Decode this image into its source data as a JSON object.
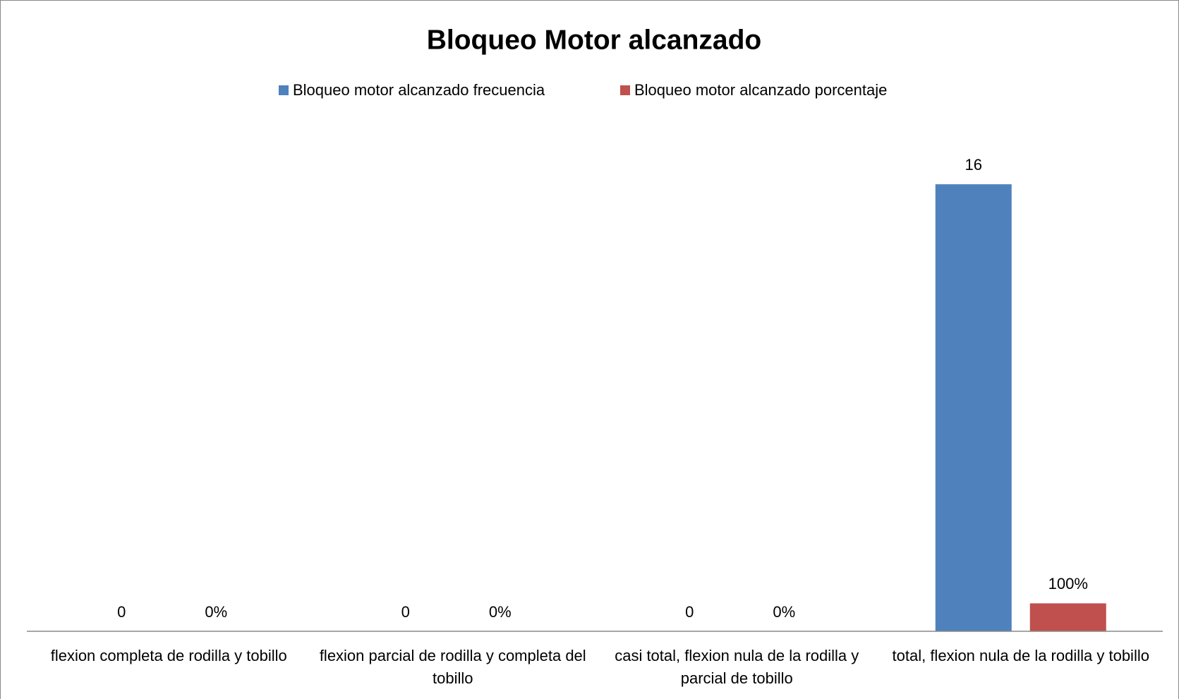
{
  "chart_data": {
    "type": "bar",
    "title": "Bloqueo Motor alcanzado",
    "categories": [
      "flexion completa de rodilla y tobillo",
      "flexion parcial de rodilla y completa del tobillo",
      "casi  total, flexion nula de la rodilla y parcial de tobillo",
      "total, flexion nula de la rodilla y tobillo"
    ],
    "series": [
      {
        "name": "Bloqueo motor alcanzado frecuencia",
        "color": "#4f81bd",
        "values": [
          0,
          0,
          0,
          16
        ]
      },
      {
        "name": "Bloqueo motor alcanzado porcentaje",
        "color": "#c0504d",
        "values": [
          0,
          0,
          0,
          1
        ],
        "value_labels": [
          "0%",
          "0%",
          "0%",
          "100%"
        ]
      }
    ],
    "ylim": [
      0,
      18
    ],
    "grid": false,
    "legend": "top"
  }
}
